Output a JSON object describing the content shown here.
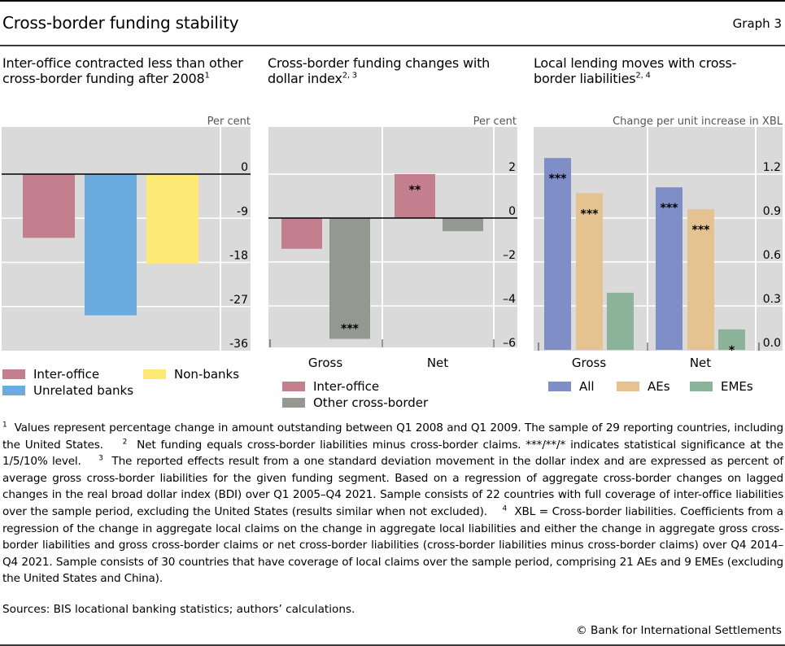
{
  "header": {
    "title": "Cross-border funding stability",
    "graph_number": "Graph 3"
  },
  "panels": [
    {
      "subtitle": "Inter-office contracted less than other cross-border funding after 2008",
      "subtitle_sup": "1",
      "unit": "Per cent"
    },
    {
      "subtitle": "Cross-border funding changes with dollar index",
      "subtitle_sup": "2, 3",
      "unit": "Per cent"
    },
    {
      "subtitle": "Local lending moves with cross-border liabilities",
      "subtitle_sup": "2, 4",
      "unit": "Change per unit increase in XBL"
    }
  ],
  "colors": {
    "inter_office": "#c47f8e",
    "unrelated_banks": "#6aace0",
    "non_banks": "#fde974",
    "other_cross_border": "#939991",
    "all": "#808ec7",
    "aes": "#e5c390",
    "emes": "#8bb39a",
    "plot_bg": "#dadada"
  },
  "chart_data": [
    {
      "type": "bar",
      "title": "Inter-office contracted less than other cross-border funding after 2008",
      "ylabel": "Per cent",
      "categories": [
        "Inter-office",
        "Unrelated banks",
        "Non-banks"
      ],
      "values": [
        -13.0,
        -28.8,
        -18.3
      ],
      "yticks": [
        "0",
        "-9",
        "-18",
        "-27",
        "-36"
      ],
      "ytick_values": [
        0,
        -9,
        -18,
        -27,
        -36
      ],
      "ylim": [
        -36,
        0
      ],
      "legend": [
        "Inter-office",
        "Unrelated banks",
        "Non-banks"
      ],
      "legend_position": "bottom",
      "grid": true
    },
    {
      "type": "bar",
      "title": "Cross-border funding changes with dollar index",
      "ylabel": "Per cent",
      "categories": [
        "Gross",
        "Net"
      ],
      "series": [
        {
          "name": "Inter-office",
          "values": [
            -1.4,
            2.0
          ],
          "significance": [
            "",
            "**"
          ]
        },
        {
          "name": "Other cross-border",
          "values": [
            -5.5,
            -0.6
          ],
          "significance": [
            "***",
            ""
          ]
        }
      ],
      "yticks": [
        "2",
        "0",
        "–2",
        "–4",
        "–6"
      ],
      "ytick_values": [
        2,
        0,
        -2,
        -4,
        -6
      ],
      "ylim": [
        -6,
        4
      ],
      "legend": [
        "Inter-office",
        "Other cross-border"
      ],
      "legend_position": "bottom",
      "grid": true
    },
    {
      "type": "bar",
      "title": "Local lending moves with cross-border liabilities",
      "ylabel": "Change per unit increase in XBL",
      "categories": [
        "Gross",
        "Net"
      ],
      "series": [
        {
          "name": "All",
          "values": [
            1.31,
            1.11
          ],
          "significance": [
            "***",
            "***"
          ]
        },
        {
          "name": "AEs",
          "values": [
            1.07,
            0.96
          ],
          "significance": [
            "***",
            "***"
          ]
        },
        {
          "name": "EMEs",
          "values": [
            0.39,
            0.14
          ],
          "significance": [
            "",
            "*"
          ]
        }
      ],
      "yticks": [
        "1.2",
        "0.9",
        "0.6",
        "0.3",
        "0.0"
      ],
      "ytick_values": [
        1.2,
        0.9,
        0.6,
        0.3,
        0.0
      ],
      "ylim": [
        0,
        1.5
      ],
      "legend": [
        "All",
        "AEs",
        "EMEs"
      ],
      "legend_position": "bottom",
      "grid": true
    }
  ],
  "footnotes": [
    {
      "num": "1",
      "text": "Values represent percentage change in amount outstanding between Q1 2008 and Q1 2009. The sample of 29 reporting countries, including the United States."
    },
    {
      "num": "2",
      "text": "Net funding equals cross-border liabilities minus cross-border claims. ***/**/* indicates statistical significance at the 1/5/10% level."
    },
    {
      "num": "3",
      "text": "The reported effects result from a one standard deviation movement in the dollar index and are expressed as percent of average gross cross-border liabilities for the given funding segment. Based on a regression of aggregate cross-border changes on lagged changes in the real broad dollar index (BDI) over Q1 2005–Q4 2021. Sample consists of 22 countries with full coverage of inter-office liabilities over the sample period, excluding the United States (results similar when not excluded)."
    },
    {
      "num": "4",
      "text": "XBL = Cross-border liabilities. Coefficients from a regression of the change in aggregate local claims on the change in aggregate local liabilities and either the change in aggregate gross cross-border liabilities and gross cross-border claims or net cross-border liabilities (cross-border liabilities minus cross-border claims) over Q4 2014–Q4 2021. Sample consists of 30 countries that have coverage of local claims over the sample period, comprising 21 AEs and 9 EMEs (excluding the United States and China)."
    }
  ],
  "sources": "Sources: BIS locational banking statistics; authors’ calculations.",
  "copyright": "© Bank for International Settlements"
}
